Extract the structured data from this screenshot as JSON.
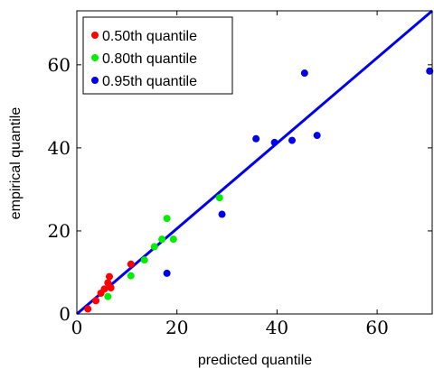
{
  "chart_data": {
    "type": "scatter",
    "xlabel": "predicted quantile",
    "ylabel": "empirical quantile",
    "xlim": [
      0,
      71
    ],
    "ylim": [
      0,
      73
    ],
    "xticks": [
      0,
      20,
      40,
      60
    ],
    "yticks": [
      0,
      20,
      40,
      60
    ],
    "grid": false,
    "legend_position": "top-left",
    "series": [
      {
        "name": "0.50th quantile",
        "color": "#ff0000",
        "points": [
          [
            2.2,
            1.2
          ],
          [
            3.8,
            3.2
          ],
          [
            4.8,
            5.0
          ],
          [
            5.5,
            6.0
          ],
          [
            6.2,
            7.5
          ],
          [
            6.5,
            9.0
          ],
          [
            6.8,
            6.3
          ],
          [
            10.8,
            12.0
          ]
        ]
      },
      {
        "name": "0.80th quantile",
        "color": "#00ee00",
        "points": [
          [
            6.2,
            4.2
          ],
          [
            10.8,
            9.2
          ],
          [
            13.5,
            13.0
          ],
          [
            15.5,
            16.2
          ],
          [
            17.0,
            18.0
          ],
          [
            18.0,
            23.0
          ],
          [
            19.3,
            18.0
          ],
          [
            28.5,
            28.0
          ]
        ]
      },
      {
        "name": "0.95th quantile",
        "color": "#0000ee",
        "points": [
          [
            18.0,
            9.8
          ],
          [
            29.0,
            24.0
          ],
          [
            35.8,
            42.2
          ],
          [
            39.5,
            41.3
          ],
          [
            43.0,
            41.8
          ],
          [
            45.5,
            58.0
          ],
          [
            48.0,
            43.0
          ],
          [
            70.5,
            58.5
          ]
        ]
      }
    ],
    "reference_line": {
      "color": "#0000ee",
      "from": [
        0,
        0
      ],
      "to": [
        71,
        73
      ]
    }
  }
}
